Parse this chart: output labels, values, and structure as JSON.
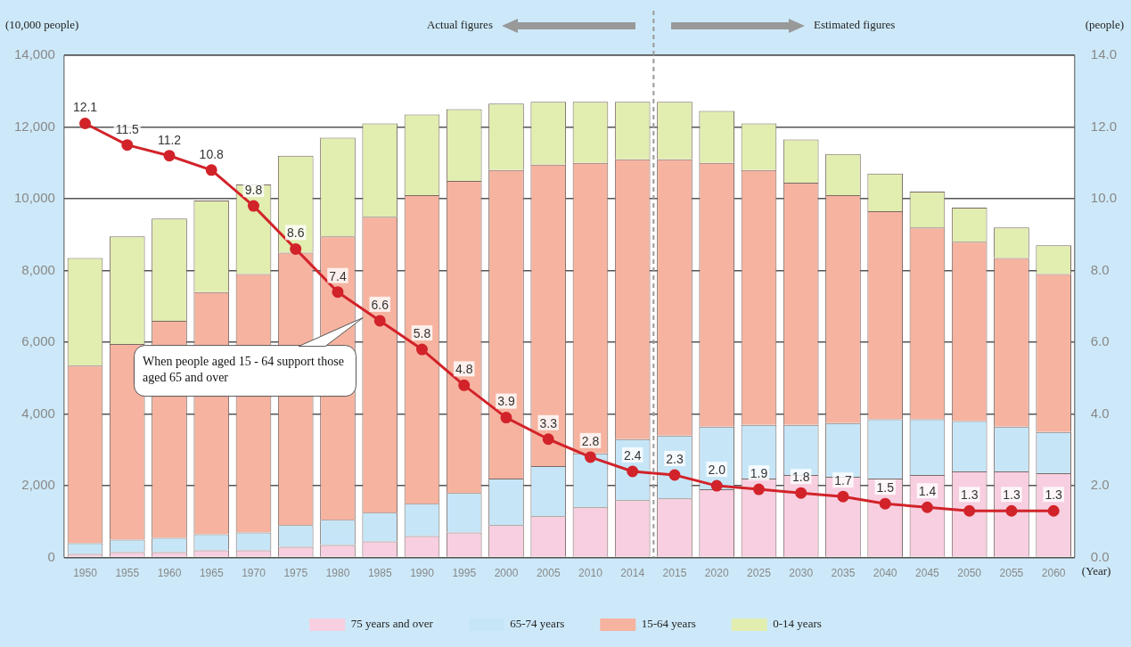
{
  "chart_data": {
    "type": "bar",
    "stacked": true,
    "ylabel": "(10,000 people)",
    "y2label": "(people)",
    "xlabel": "(Year)",
    "categories": [
      "1950",
      "1955",
      "1960",
      "1965",
      "1970",
      "1975",
      "1980",
      "1985",
      "1990",
      "1995",
      "2000",
      "2005",
      "2010",
      "2014",
      "2015",
      "2020",
      "2025",
      "2030",
      "2035",
      "2040",
      "2045",
      "2050",
      "2055",
      "2060"
    ],
    "series": [
      {
        "name": "75 years and over",
        "color": "#f7cfe0",
        "values": [
          100,
          150,
          150,
          200,
          200,
          300,
          350,
          450,
          600,
          700,
          900,
          1150,
          1400,
          1600,
          1650,
          1900,
          2200,
          2300,
          2250,
          2200,
          2300,
          2400,
          2400,
          2350
        ]
      },
      {
        "name": "65-74 years",
        "color": "#c6e6f7",
        "values": [
          300,
          350,
          400,
          450,
          500,
          600,
          700,
          800,
          900,
          1100,
          1300,
          1400,
          1500,
          1700,
          1750,
          1750,
          1500,
          1400,
          1500,
          1650,
          1550,
          1400,
          1250,
          1150
        ]
      },
      {
        "name": "15-64 years",
        "color": "#f6b3a0",
        "values": [
          4950,
          5450,
          6050,
          6750,
          7200,
          7600,
          7900,
          8250,
          8600,
          8700,
          8600,
          8400,
          8100,
          7800,
          7700,
          7350,
          7100,
          6750,
          6350,
          5800,
          5350,
          5000,
          4700,
          4400
        ]
      },
      {
        "name": "0-14 years",
        "color": "#e2edb0",
        "values": [
          3000,
          3000,
          2850,
          2550,
          2500,
          2700,
          2750,
          2600,
          2250,
          2000,
          1850,
          1750,
          1700,
          1600,
          1600,
          1450,
          1300,
          1200,
          1150,
          1050,
          1000,
          950,
          850,
          800
        ]
      },
      {
        "type": "line",
        "axis": "y2",
        "color": "#d2232a",
        "marker": "circle",
        "values": [
          12.1,
          11.5,
          11.2,
          10.8,
          9.8,
          8.6,
          7.4,
          6.6,
          5.8,
          4.8,
          3.9,
          3.3,
          2.8,
          2.4,
          2.3,
          2.0,
          1.9,
          1.8,
          1.7,
          1.5,
          1.4,
          1.3,
          1.3,
          1.3
        ],
        "value_labels": [
          "12.1",
          "11.5",
          "11.2",
          "10.8",
          "9.8",
          "8.6",
          "7.4",
          "6.6",
          "5.8",
          "4.8",
          "3.9",
          "3.3",
          "2.8",
          "2.4",
          "2.3",
          "2.0",
          "1.9",
          "1.8",
          "1.7",
          "1.5",
          "1.4",
          "1.3",
          "1.3",
          "1.3"
        ]
      }
    ],
    "ylim": [
      0,
      14000
    ],
    "yticks": [
      {
        "value": 0,
        "label": "0"
      },
      {
        "value": 2000,
        "label": "2,000"
      },
      {
        "value": 4000,
        "label": "4,000"
      },
      {
        "value": 6000,
        "label": "6,000"
      },
      {
        "value": 8000,
        "label": "8,000"
      },
      {
        "value": 10000,
        "label": "10,000"
      },
      {
        "value": 12000,
        "label": "12,000"
      },
      {
        "value": 14000,
        "label": "14,000"
      }
    ],
    "y2lim": [
      0,
      14
    ],
    "y2ticks": [
      {
        "value": 0,
        "label": "0.0"
      },
      {
        "value": 2,
        "label": "2.0"
      },
      {
        "value": 4,
        "label": "4.0"
      },
      {
        "value": 6,
        "label": "6.0"
      },
      {
        "value": 8,
        "label": "8.0"
      },
      {
        "value": 10,
        "label": "10.0"
      },
      {
        "value": 12,
        "label": "12.0"
      },
      {
        "value": 14,
        "label": "14.0"
      }
    ],
    "grid": "y",
    "legend": "bottom",
    "ref_lines": [
      {
        "axis": "x",
        "value": "2014",
        "line_style": "dashed",
        "color": "#9a9a9a"
      }
    ],
    "annotations": [
      "Actual figures",
      "Estimated figures",
      "When people aged 15 - 64 support those aged 65 and over"
    ]
  }
}
